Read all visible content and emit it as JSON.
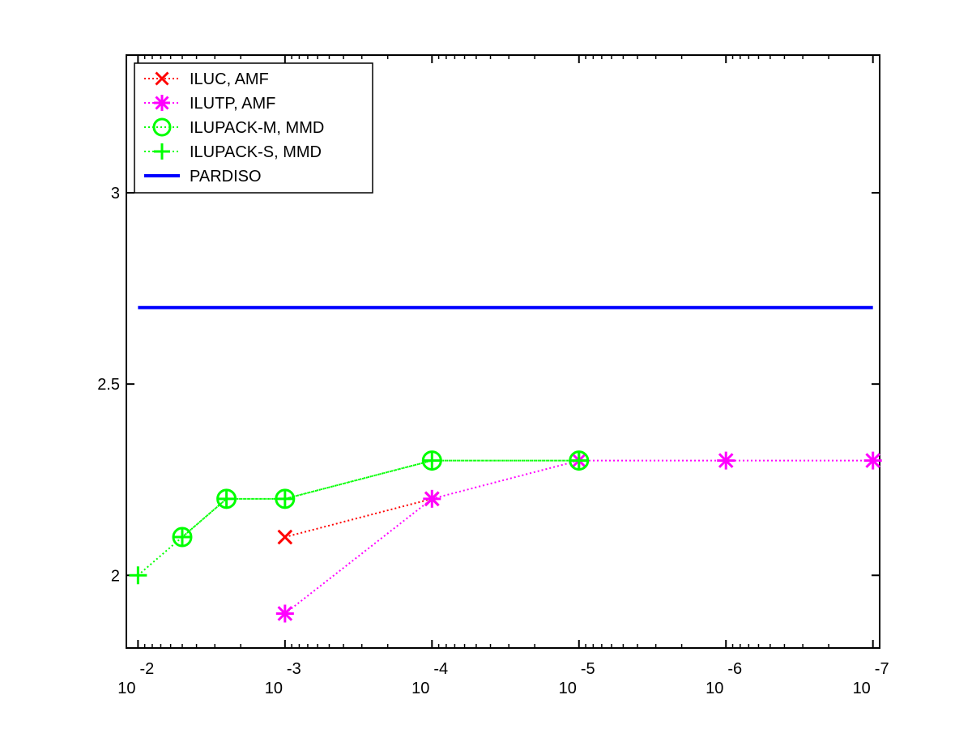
{
  "chart_data": {
    "type": "line",
    "x_scale": "log-reversed",
    "x_ticks": [
      {
        "value": 0.01,
        "base": "10",
        "exp": "-2"
      },
      {
        "value": 0.001,
        "base": "10",
        "exp": "-3"
      },
      {
        "value": 0.0001,
        "base": "10",
        "exp": "-4"
      },
      {
        "value": 1e-05,
        "base": "10",
        "exp": "-5"
      },
      {
        "value": 1e-06,
        "base": "10",
        "exp": "-6"
      },
      {
        "value": 1e-07,
        "base": "10",
        "exp": "-7"
      }
    ],
    "xlim": [
      0.012,
      9e-08
    ],
    "y_ticks": [
      {
        "value": 2,
        "label": "2"
      },
      {
        "value": 2.5,
        "label": "2.5"
      },
      {
        "value": 3,
        "label": "3"
      }
    ],
    "ylim": [
      1.81,
      3.36
    ],
    "grid": false,
    "legend_position": "top-left",
    "series": [
      {
        "name": "ILUC, AMF",
        "color": "#ff0000",
        "line_style": "dotted",
        "marker": "x",
        "x": [
          0.001,
          0.0001
        ],
        "y": [
          2.1,
          2.2
        ]
      },
      {
        "name": "ILUTP, AMF",
        "color": "#ff00ff",
        "line_style": "dotted",
        "marker": "star",
        "x": [
          0.001,
          0.0001,
          1e-05,
          1e-06,
          1e-07
        ],
        "y": [
          1.9,
          2.2,
          2.3,
          2.3,
          2.3
        ]
      },
      {
        "name": "ILUPACK-M, MMD",
        "color": "#00ff00",
        "line_style": "dotted",
        "marker": "circle",
        "x": [
          0.005,
          0.0025,
          0.001,
          0.0001,
          1e-05
        ],
        "y": [
          2.1,
          2.2,
          2.2,
          2.3,
          2.3
        ]
      },
      {
        "name": "ILUPACK-S, MMD",
        "color": "#00ff00",
        "line_style": "dotted",
        "marker": "plus",
        "x": [
          0.01,
          0.005,
          0.0025,
          0.001,
          0.0001,
          1e-05
        ],
        "y": [
          2.0,
          2.1,
          2.2,
          2.2,
          2.3,
          2.3
        ]
      },
      {
        "name": "PARDISO",
        "color": "#0000ff",
        "line_style": "solid",
        "marker": "none",
        "x": [
          0.01,
          1e-07
        ],
        "y": [
          2.7,
          2.7
        ]
      }
    ]
  }
}
